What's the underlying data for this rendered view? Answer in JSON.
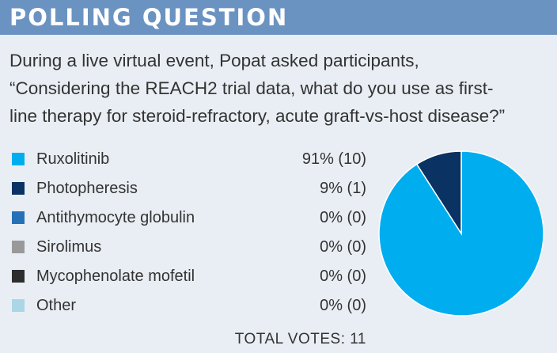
{
  "header": {
    "title": "POLLING QUESTION"
  },
  "question": {
    "lines": [
      "During a live virtual event, Popat asked participants,",
      "“Considering the REACH2 trial data, what do you use as first-",
      "line therapy for steroid-refractory, acute graft-vs-host disease?”"
    ]
  },
  "chart_data": {
    "type": "pie",
    "categories": [
      "Ruxolitinib",
      "Photopheresis",
      "Antithymocyte globulin",
      "Sirolimus",
      "Mycophenolate mofetil",
      "Other"
    ],
    "values": [
      10,
      1,
      0,
      0,
      0,
      0
    ],
    "value_labels": [
      "91% (10)",
      "9% (1)",
      "0% (0)",
      "0% (0)",
      "0% (0)",
      "0% (0)"
    ],
    "colors": [
      "#00aeef",
      "#0a3262",
      "#2670b8",
      "#999999",
      "#2d2d2d",
      "#aad6e6"
    ],
    "legend_placement": "left",
    "total_label": "TOTAL VOTES: 11"
  },
  "colors": {
    "header_bg": "#6b93c2",
    "panel_bg": "#e9eef4"
  }
}
